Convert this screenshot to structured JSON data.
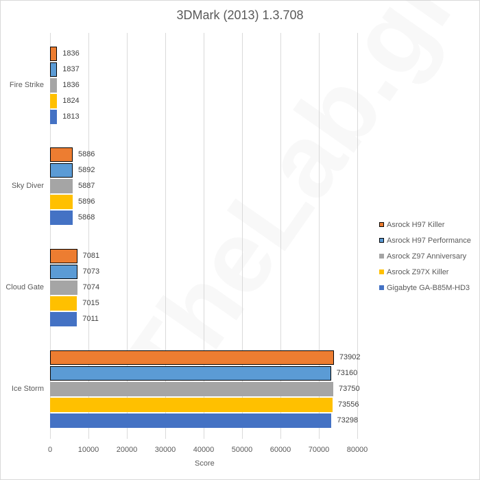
{
  "chart_data": {
    "type": "bar",
    "orientation": "horizontal",
    "title": "3DMark (2013) 1.3.708",
    "xlabel": "Score",
    "ylabel": "",
    "xlim": [
      0,
      80000
    ],
    "x_ticks": [
      "0",
      "10000",
      "20000",
      "30000",
      "40000",
      "50000",
      "60000",
      "70000",
      "80000"
    ],
    "grid": true,
    "legend_position": "right",
    "categories": [
      "Fire Strike",
      "Sky Diver",
      "Cloud Gate",
      "Ice Storm"
    ],
    "series": [
      {
        "name": "Asrock H97 Killer",
        "color": "#ED7D31",
        "outlined": true,
        "values": [
          1836,
          5886,
          7081,
          73902
        ]
      },
      {
        "name": "Asrock H97 Performance",
        "color": "#5B9BD5",
        "outlined": true,
        "values": [
          1837,
          5892,
          7073,
          73160
        ]
      },
      {
        "name": "Asrock Z97 Anniversary",
        "color": "#A5A5A5",
        "outlined": false,
        "values": [
          1836,
          5887,
          7074,
          73750
        ]
      },
      {
        "name": "Asrock Z97X Killer",
        "color": "#FFC000",
        "outlined": false,
        "values": [
          1824,
          5896,
          7015,
          73556
        ]
      },
      {
        "name": "Gigabyte GA-B85M-HD3",
        "color": "#4472C4",
        "outlined": false,
        "values": [
          1813,
          5868,
          7011,
          73298
        ]
      }
    ]
  },
  "watermark": "TheLab.gr"
}
